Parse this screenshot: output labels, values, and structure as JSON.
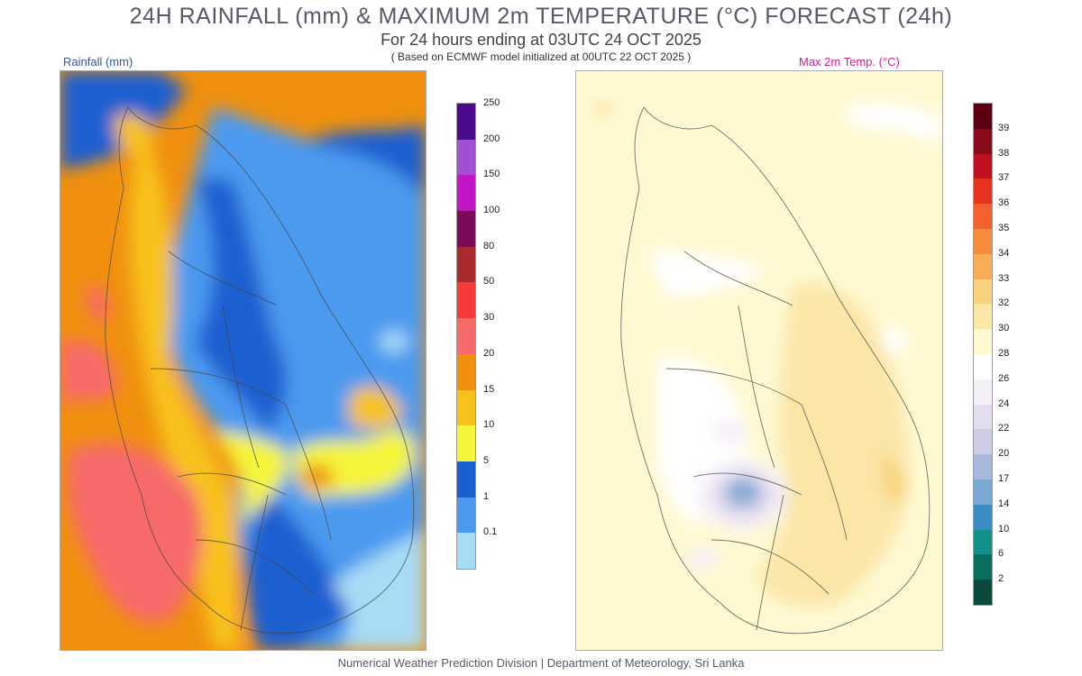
{
  "header": {
    "title": "24H RAINFALL (mm) & MAXIMUM 2m TEMPERATURE (°C) FORECAST (24h)",
    "subtitle": "For 24 hours ending at 03UTC 24 OCT 2025",
    "model_note": "( Based on ECMWF model initialized at 00UTC 22 OCT 2025 )"
  },
  "rain_map": {
    "label": "Rainfall (mm)",
    "legend": [
      {
        "label": "0.1",
        "color": "#a8dcf5"
      },
      {
        "label": "1",
        "color": "#4c9af0"
      },
      {
        "label": "5",
        "color": "#1a5fd0"
      },
      {
        "label": "10",
        "color": "#f5f53a"
      },
      {
        "label": "15",
        "color": "#f8c21a"
      },
      {
        "label": "20",
        "color": "#f0900e"
      },
      {
        "label": "30",
        "color": "#f76a6a"
      },
      {
        "label": "50",
        "color": "#f53a3a"
      },
      {
        "label": "80",
        "color": "#a82a2a"
      },
      {
        "label": "100",
        "color": "#7a0a5a"
      },
      {
        "label": "150",
        "color": "#c414c8"
      },
      {
        "label": "200",
        "color": "#a050d0"
      },
      {
        "label": "250",
        "color": "#4a0a8a"
      }
    ]
  },
  "temp_map": {
    "label": "Max 2m Temp. (°C)",
    "legend": [
      {
        "label": "2",
        "color": "#0b4a3a"
      },
      {
        "label": "6",
        "color": "#0a6e5e"
      },
      {
        "label": "10",
        "color": "#14908a"
      },
      {
        "label": "14",
        "color": "#3a8cc4"
      },
      {
        "label": "17",
        "color": "#7aaad4"
      },
      {
        "label": "20",
        "color": "#a8b8dc"
      },
      {
        "label": "22",
        "color": "#cccce4"
      },
      {
        "label": "24",
        "color": "#e4ddef"
      },
      {
        "label": "26",
        "color": "#f5f0f8"
      },
      {
        "label": "28",
        "color": "#ffffff"
      },
      {
        "label": "30",
        "color": "#fff9d2"
      },
      {
        "label": "32",
        "color": "#fbe6a8"
      },
      {
        "label": "33",
        "color": "#f8d27c"
      },
      {
        "label": "34",
        "color": "#f6ad55"
      },
      {
        "label": "35",
        "color": "#f58a3a"
      },
      {
        "label": "36",
        "color": "#f5612e"
      },
      {
        "label": "37",
        "color": "#e8321e"
      },
      {
        "label": "38",
        "color": "#c01020"
      },
      {
        "label": "39",
        "color": "#8a0a1a"
      },
      {
        "label": "",
        "color": "#5a0010"
      }
    ]
  },
  "footer": "Numerical Weather Prediction Division | Department of Meteorology, Sri Lanka"
}
